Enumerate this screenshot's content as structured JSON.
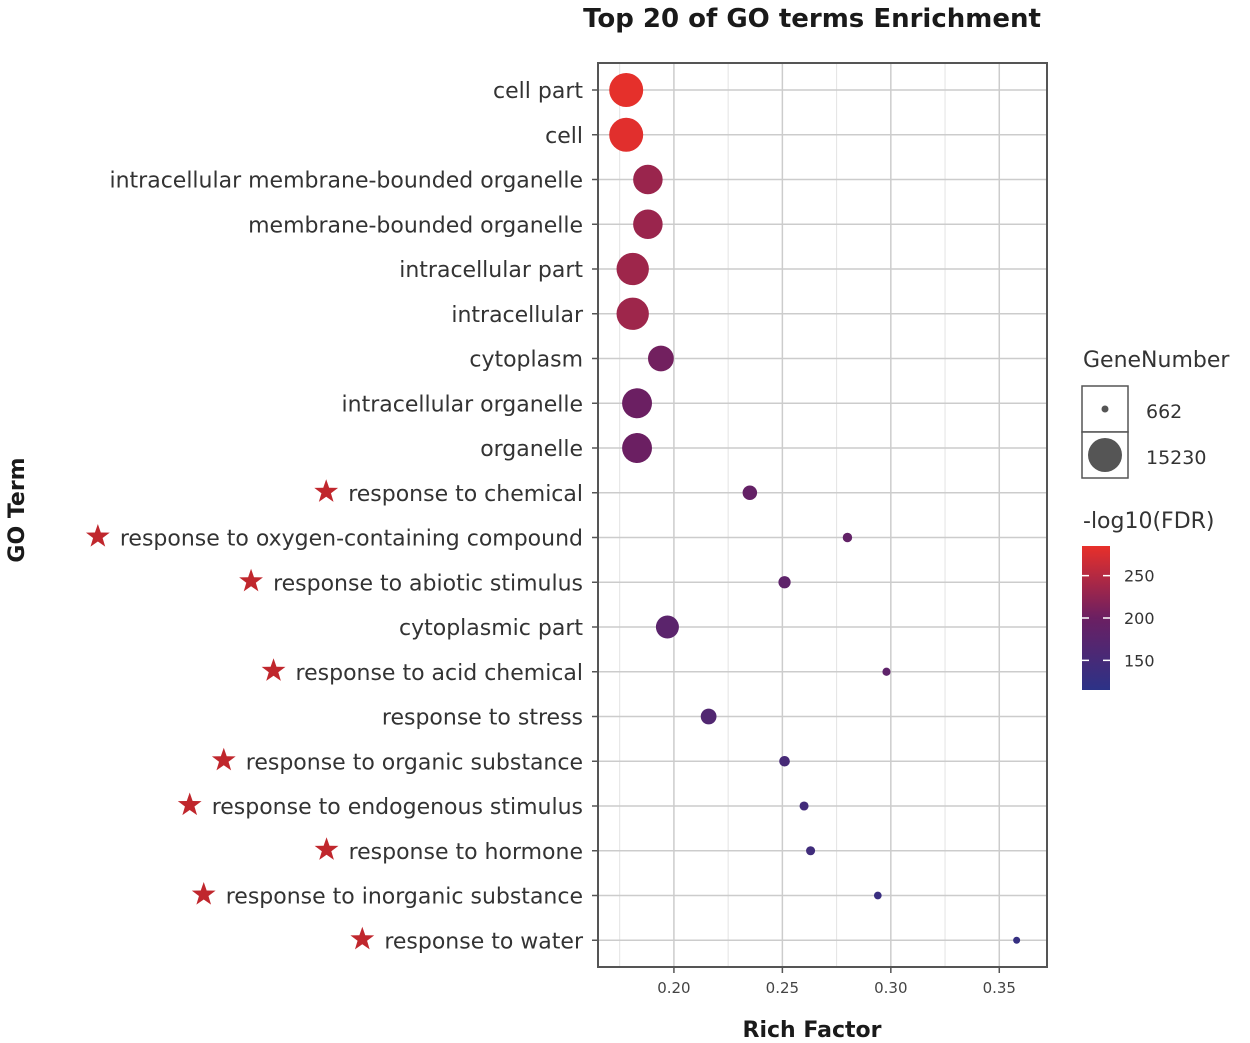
{
  "chart_data": {
    "type": "scatter",
    "title": "Top 20 of GO terms Enrichment",
    "xlabel": "Rich Factor",
    "ylabel": "GO Term",
    "xlim": [
      0.165,
      0.372
    ],
    "xticks": [
      "0.20",
      "0.25",
      "0.30",
      "0.35"
    ],
    "xtick_values": [
      0.2,
      0.25,
      0.3,
      0.35
    ],
    "grid": true,
    "size_legend": {
      "title": "GeneNumber",
      "entries": [
        {
          "label": "662",
          "value": 662
        },
        {
          "label": "15230",
          "value": 15230
        }
      ]
    },
    "color_legend": {
      "title": "-log10(FDR)",
      "ticks": [
        "250",
        "200",
        "150"
      ],
      "tick_values": [
        250,
        200,
        150
      ],
      "range": [
        115,
        285
      ],
      "low_color": "#2c3287",
      "mid_color": "#6b1f62",
      "high_color": "#e8302a"
    },
    "star_color": "#c0272d",
    "points": [
      {
        "term": "cell part",
        "rich_factor": 0.178,
        "fdr_log": 283,
        "gene_number": 15230,
        "starred": false
      },
      {
        "term": "cell",
        "rich_factor": 0.178,
        "fdr_log": 280,
        "gene_number": 15230,
        "starred": false
      },
      {
        "term": "intracellular membrane-bounded organelle",
        "rich_factor": 0.188,
        "fdr_log": 232,
        "gene_number": 11500,
        "starred": false
      },
      {
        "term": "membrane-bounded organelle",
        "rich_factor": 0.188,
        "fdr_log": 232,
        "gene_number": 11500,
        "starred": false
      },
      {
        "term": "intracellular part",
        "rich_factor": 0.181,
        "fdr_log": 235,
        "gene_number": 13800,
        "starred": false
      },
      {
        "term": "intracellular",
        "rich_factor": 0.181,
        "fdr_log": 235,
        "gene_number": 13800,
        "starred": false
      },
      {
        "term": "cytoplasm",
        "rich_factor": 0.194,
        "fdr_log": 205,
        "gene_number": 8800,
        "starred": false
      },
      {
        "term": "intracellular organelle",
        "rich_factor": 0.183,
        "fdr_log": 200,
        "gene_number": 11800,
        "starred": false
      },
      {
        "term": "organelle",
        "rich_factor": 0.183,
        "fdr_log": 200,
        "gene_number": 11800,
        "starred": false
      },
      {
        "term": "response to chemical",
        "rich_factor": 0.235,
        "fdr_log": 190,
        "gene_number": 2800,
        "starred": true
      },
      {
        "term": "response to oxygen-containing compound",
        "rich_factor": 0.28,
        "fdr_log": 188,
        "gene_number": 1200,
        "starred": true
      },
      {
        "term": "response to abiotic stimulus",
        "rich_factor": 0.251,
        "fdr_log": 182,
        "gene_number": 2000,
        "starred": true
      },
      {
        "term": "cytoplasmic part",
        "rich_factor": 0.197,
        "fdr_log": 178,
        "gene_number": 7000,
        "starred": false
      },
      {
        "term": "response to acid chemical",
        "rich_factor": 0.298,
        "fdr_log": 182,
        "gene_number": 900,
        "starred": true
      },
      {
        "term": "response to stress",
        "rich_factor": 0.216,
        "fdr_log": 165,
        "gene_number": 3300,
        "starred": false
      },
      {
        "term": "response to organic substance",
        "rich_factor": 0.251,
        "fdr_log": 152,
        "gene_number": 1500,
        "starred": true
      },
      {
        "term": "response to endogenous stimulus",
        "rich_factor": 0.26,
        "fdr_log": 145,
        "gene_number": 1100,
        "starred": true
      },
      {
        "term": "response to hormone",
        "rich_factor": 0.263,
        "fdr_log": 142,
        "gene_number": 1100,
        "starred": true
      },
      {
        "term": "response to inorganic substance",
        "rich_factor": 0.294,
        "fdr_log": 132,
        "gene_number": 800,
        "starred": true
      },
      {
        "term": "response to water",
        "rich_factor": 0.358,
        "fdr_log": 128,
        "gene_number": 662,
        "starred": true
      }
    ]
  }
}
